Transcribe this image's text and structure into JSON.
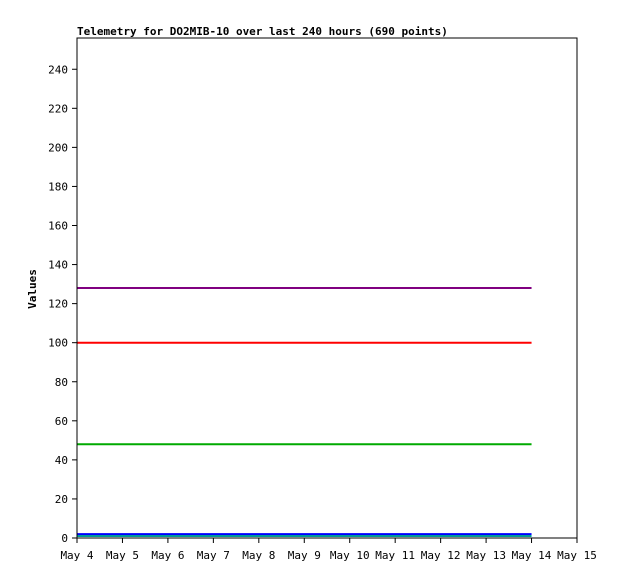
{
  "chart_data": {
    "type": "line",
    "title": "Telemetry for DO2MIB-10 over last 240 hours (690 points)",
    "xlabel": "",
    "ylabel": "Values",
    "x_ticks": [
      "May 4",
      "May 5",
      "May 6",
      "May 7",
      "May 8",
      "May 9",
      "May 10",
      "May 11",
      "May 12",
      "May 13",
      "May 14",
      "May 15"
    ],
    "xlim": [
      "May 4",
      "May 15"
    ],
    "y_ticks": [
      0,
      20,
      40,
      60,
      80,
      100,
      120,
      140,
      160,
      180,
      200,
      220,
      240
    ],
    "ylim": [
      0,
      256
    ],
    "grid": false,
    "series": [
      {
        "color": "#800080",
        "x": [
          "May 4",
          "May 14"
        ],
        "values": [
          128,
          128
        ]
      },
      {
        "color": "#ff0000",
        "x": [
          "May 4",
          "May 14"
        ],
        "values": [
          100,
          100
        ]
      },
      {
        "color": "#00aa00",
        "x": [
          "May 4",
          "May 14"
        ],
        "values": [
          48,
          48
        ]
      },
      {
        "color": "#0000ff",
        "x": [
          "May 4",
          "May 14"
        ],
        "values": [
          2,
          2
        ]
      },
      {
        "color": "#009999",
        "x": [
          "May 4",
          "May 14"
        ],
        "values": [
          1,
          1
        ]
      }
    ]
  }
}
